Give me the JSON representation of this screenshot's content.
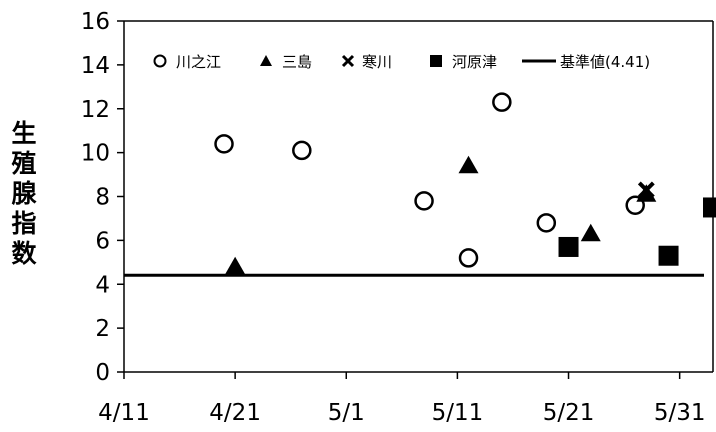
{
  "chart_data": {
    "type": "scatter",
    "title": "",
    "xlabel": "",
    "ylabel": "生殖腺指数",
    "ylim": [
      0,
      16
    ],
    "yticks": [
      "0",
      "2",
      "4",
      "6",
      "8",
      "10",
      "12",
      "14",
      "16"
    ],
    "xlim": [
      "4/11",
      "6/3"
    ],
    "xticks": [
      {
        "label": "4/11",
        "date": "2019-04-11"
      },
      {
        "label": "4/21",
        "date": "2019-04-21"
      },
      {
        "label": "5/1",
        "date": "2019-05-01"
      },
      {
        "label": "5/11",
        "date": "2019-05-11"
      },
      {
        "label": "5/21",
        "date": "2019-05-21"
      },
      {
        "label": "5/31",
        "date": "2019-05-31"
      }
    ],
    "grid": false,
    "legend_position": "top",
    "series": [
      {
        "name": "川之江",
        "marker": "open-circle",
        "points": [
          {
            "x": "2019-04-20",
            "y": 10.4
          },
          {
            "x": "2019-04-27",
            "y": 10.1
          },
          {
            "x": "2019-05-08",
            "y": 7.8
          },
          {
            "x": "2019-05-12",
            "y": 5.2
          },
          {
            "x": "2019-05-15",
            "y": 12.3
          },
          {
            "x": "2019-05-19",
            "y": 6.8
          },
          {
            "x": "2019-05-27",
            "y": 7.6
          }
        ]
      },
      {
        "name": "三島",
        "marker": "filled-triangle",
        "points": [
          {
            "x": "2019-04-21",
            "y": 4.8
          },
          {
            "x": "2019-05-12",
            "y": 9.4
          },
          {
            "x": "2019-05-23",
            "y": 6.3
          },
          {
            "x": "2019-05-28",
            "y": 8.1
          }
        ]
      },
      {
        "name": "寒川",
        "marker": "x",
        "points": [
          {
            "x": "2019-05-28",
            "y": 8.3
          }
        ]
      },
      {
        "name": "河原津",
        "marker": "filled-square",
        "points": [
          {
            "x": "2019-05-21",
            "y": 5.7
          },
          {
            "x": "2019-05-30",
            "y": 5.3
          },
          {
            "x": "2019-06-03",
            "y": 7.5
          }
        ]
      }
    ],
    "reference_line": {
      "name": "基準値(4.41)",
      "y": 4.41
    }
  }
}
